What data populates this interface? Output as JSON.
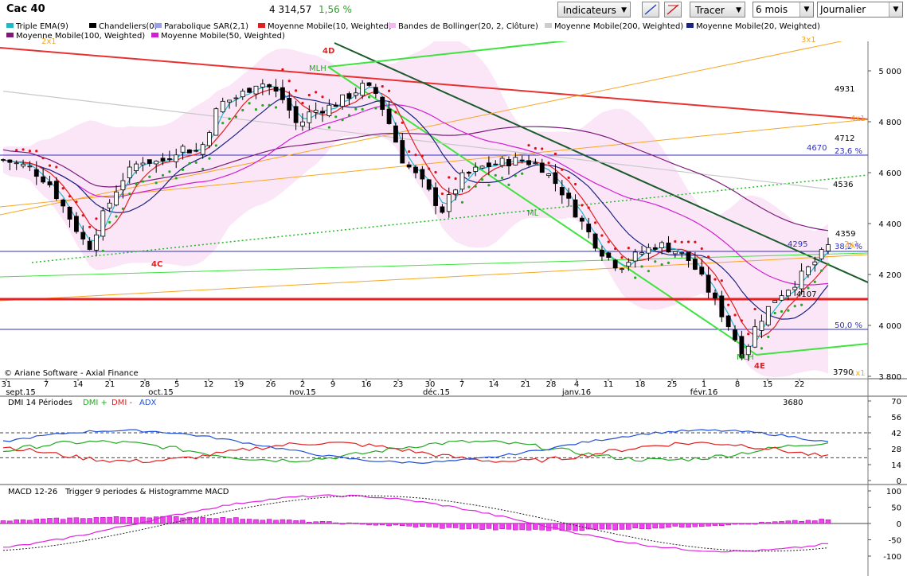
{
  "toolbar": {
    "title": "Cac 40",
    "price": "4 314,57",
    "change": "1,56 %",
    "indicators_label": "Indicateurs",
    "draw_label": "Tracer",
    "period_value": "6 mois",
    "frequency_value": "Journalier"
  },
  "legend": [
    {
      "label": "Triple EMA(9)",
      "color": "#20b8c8"
    },
    {
      "label": "Chandeliers(0)",
      "color": "#000000"
    },
    {
      "label": "Parabolique SAR(2,1)",
      "color": "#9aa0e8"
    },
    {
      "label": "Moyenne Mobile(10, Weighted)",
      "color": "#e02020"
    },
    {
      "label": "Bandes de Bollinger(20, 2, Clôture)",
      "color": "#f4b8f0"
    },
    {
      "label": "Moyenne Mobile(200, Weighted)",
      "color": "#cccccc"
    },
    {
      "label": "Moyenne Mobile(20, Weighted)",
      "color": "#1a237e"
    },
    {
      "label": "Moyenne Mobile(100, Weighted)",
      "color": "#7a1a7a"
    },
    {
      "label": "Moyenne Mobile(50, Weighted)",
      "color": "#d020d0"
    }
  ],
  "main_chart": {
    "y_ticks": [
      "5 000",
      "4 800",
      "4 600",
      "4 400",
      "4 200",
      "4 000",
      "3 800"
    ],
    "x_ticks": [
      "31",
      "7",
      "14",
      "21",
      "28",
      "5",
      "12",
      "19",
      "26",
      "2",
      "9",
      "16",
      "23",
      "30",
      "7",
      "14",
      "21",
      "28",
      "4",
      "11",
      "18",
      "25",
      "1",
      "8",
      "15",
      "22"
    ],
    "month_labels": [
      "sept.15",
      "oct.15",
      "nov.15",
      "déc.15",
      "janv.16",
      "févr.16"
    ],
    "value_labels": [
      "4931",
      "4712",
      "4670",
      "23,6 %",
      "4536",
      "4359",
      "4295",
      "38,2 %",
      "4107",
      "50,0 %",
      "3790",
      "3680"
    ],
    "fib_labels": [
      "2x1",
      "3x1",
      "4x1",
      "1x1",
      "2x1",
      "1x1"
    ],
    "wave_labels": [
      "4D",
      "4C",
      "4E"
    ],
    "mlh_labels": [
      "MLH",
      "ML",
      "MLH"
    ],
    "copyright": "© Ariane Software - Axial Finance",
    "colors": {
      "up": "#ffffff",
      "down": "#000000",
      "sar": "#22aa22",
      "sar_top": "#e01010"
    }
  },
  "dmi": {
    "title": "DMI 14 Périodes",
    "dmi_plus": "DMI +",
    "dmi_minus": "DMI -",
    "adx": "ADX",
    "y_ticks": [
      "70",
      "56",
      "42",
      "28",
      "14",
      "0"
    ]
  },
  "macd": {
    "title": "MACD 12-26",
    "subtitle": "Trigger 9 periodes & Histogramme MACD",
    "y_ticks": [
      "100",
      "50",
      "0",
      "-50",
      "-100"
    ]
  }
}
